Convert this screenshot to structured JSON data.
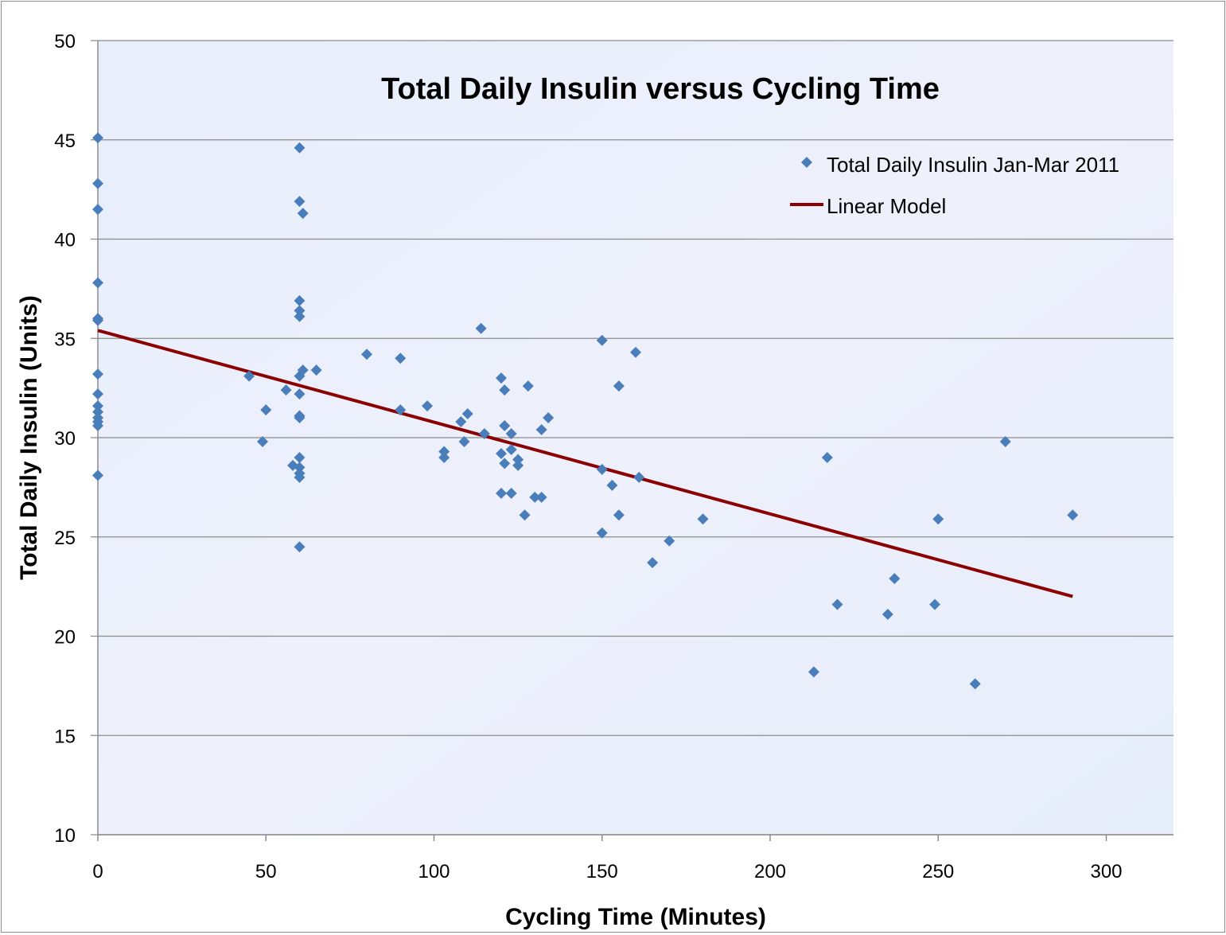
{
  "chart_data": {
    "type": "scatter",
    "title": "Total Daily Insulin versus Cycling Time",
    "xlabel": "Cycling Time (Minutes)",
    "ylabel": "Total Daily Insulin (Units)",
    "xlim": [
      0,
      320
    ],
    "ylim": [
      10,
      50
    ],
    "xticks": [
      0,
      50,
      100,
      150,
      200,
      250,
      300
    ],
    "yticks": [
      10,
      15,
      20,
      25,
      30,
      35,
      40,
      45,
      50
    ],
    "grid": "horizontal",
    "legend_position": "top-right",
    "series": [
      {
        "name": "Total Daily Insulin Jan-Mar 2011",
        "marker": "diamond",
        "color": "#4a7ebb",
        "points": [
          [
            0,
            45.1
          ],
          [
            0,
            42.8
          ],
          [
            0,
            41.5
          ],
          [
            0,
            37.8
          ],
          [
            0,
            36.0
          ],
          [
            0,
            35.9
          ],
          [
            0,
            33.2
          ],
          [
            0,
            32.2
          ],
          [
            0,
            31.6
          ],
          [
            0,
            31.3
          ],
          [
            0,
            31.0
          ],
          [
            0,
            30.8
          ],
          [
            0,
            30.6
          ],
          [
            0,
            28.1
          ],
          [
            60,
            44.6
          ],
          [
            60,
            41.9
          ],
          [
            61,
            41.3
          ],
          [
            60,
            36.9
          ],
          [
            60,
            36.4
          ],
          [
            60,
            36.1
          ],
          [
            61,
            33.4
          ],
          [
            60,
            33.1
          ],
          [
            60,
            32.2
          ],
          [
            60,
            31.1
          ],
          [
            60,
            31.0
          ],
          [
            60,
            29.0
          ],
          [
            60,
            28.5
          ],
          [
            60,
            28.2
          ],
          [
            60,
            28.0
          ],
          [
            60,
            24.5
          ],
          [
            45,
            33.1
          ],
          [
            49,
            29.8
          ],
          [
            50,
            31.4
          ],
          [
            56,
            32.4
          ],
          [
            58,
            28.6
          ],
          [
            65,
            33.4
          ],
          [
            80,
            34.2
          ],
          [
            90,
            34.0
          ],
          [
            90,
            31.4
          ],
          [
            98,
            31.6
          ],
          [
            103,
            29.3
          ],
          [
            103,
            29.0
          ],
          [
            108,
            30.8
          ],
          [
            110,
            31.2
          ],
          [
            109,
            29.8
          ],
          [
            114,
            35.5
          ],
          [
            115,
            30.2
          ],
          [
            120,
            33.0
          ],
          [
            121,
            32.4
          ],
          [
            120,
            29.2
          ],
          [
            121,
            30.6
          ],
          [
            123,
            30.2
          ],
          [
            123,
            29.4
          ],
          [
            121,
            28.7
          ],
          [
            125,
            28.9
          ],
          [
            125,
            28.6
          ],
          [
            120,
            27.2
          ],
          [
            123,
            27.2
          ],
          [
            127,
            26.1
          ],
          [
            128,
            32.6
          ],
          [
            130,
            27.0
          ],
          [
            132,
            27.0
          ],
          [
            132,
            30.4
          ],
          [
            134,
            31.0
          ],
          [
            150,
            34.9
          ],
          [
            150,
            28.4
          ],
          [
            150,
            25.2
          ],
          [
            153,
            27.6
          ],
          [
            155,
            32.6
          ],
          [
            155,
            26.1
          ],
          [
            160,
            34.3
          ],
          [
            161,
            28.0
          ],
          [
            165,
            23.7
          ],
          [
            170,
            24.8
          ],
          [
            180,
            25.9
          ],
          [
            213,
            18.2
          ],
          [
            217,
            29.0
          ],
          [
            220,
            21.6
          ],
          [
            235,
            21.1
          ],
          [
            237,
            22.9
          ],
          [
            249,
            21.6
          ],
          [
            250,
            25.9
          ],
          [
            261,
            17.6
          ],
          [
            270,
            29.8
          ],
          [
            290,
            26.1
          ]
        ]
      },
      {
        "name": "Linear Model",
        "type": "line",
        "color": "#8b0000",
        "points": [
          [
            0,
            35.4
          ],
          [
            290,
            22.0
          ]
        ]
      }
    ]
  }
}
